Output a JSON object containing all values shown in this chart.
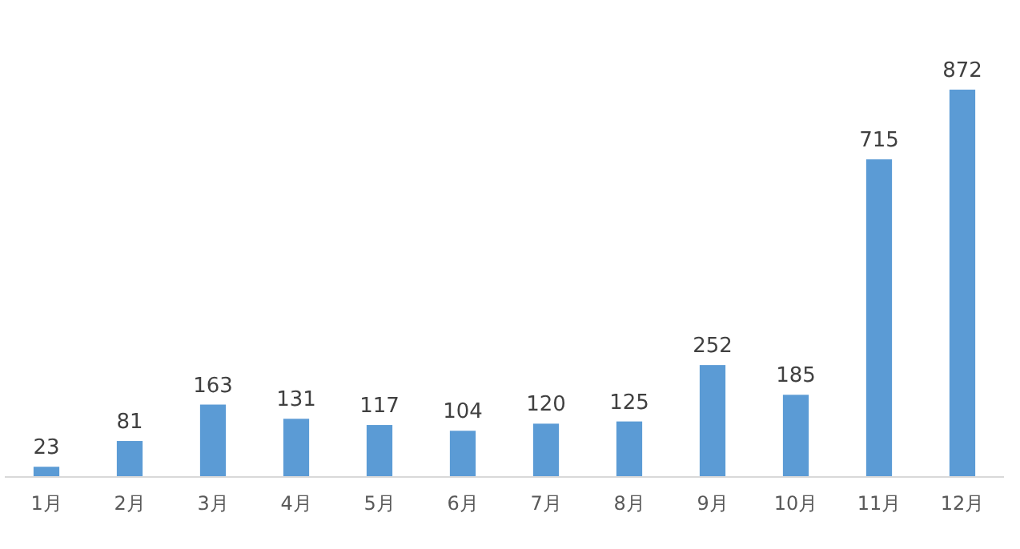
{
  "chart_data": {
    "type": "bar",
    "categories": [
      "1月",
      "2月",
      "3月",
      "4月",
      "5月",
      "6月",
      "7月",
      "8月",
      "9月",
      "10月",
      "11月",
      "12月"
    ],
    "values": [
      23,
      81,
      163,
      131,
      117,
      104,
      120,
      125,
      252,
      185,
      715,
      872
    ],
    "color": "#5b9bd5",
    "data_labels": true
  }
}
